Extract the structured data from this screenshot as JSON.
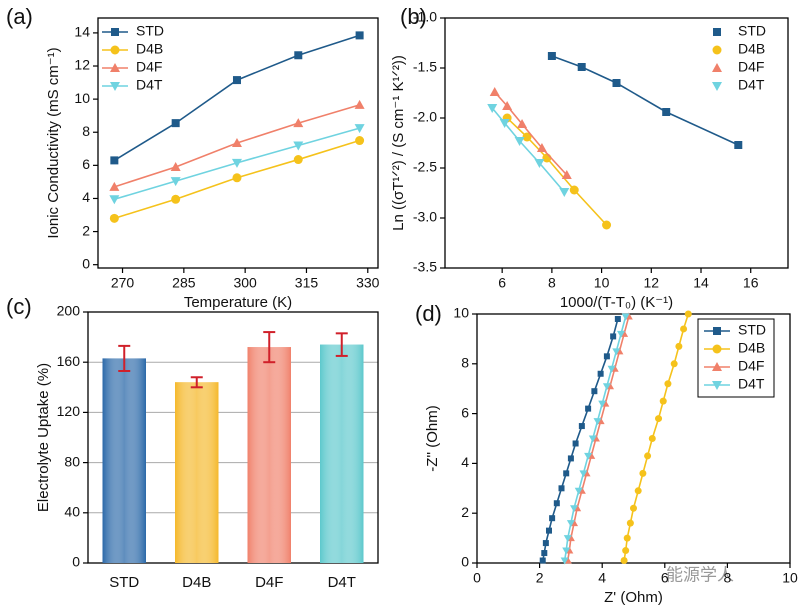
{
  "chart_data": [
    {
      "type": "line",
      "panel_label": "(a)",
      "x_label": "Temperature (K)",
      "y_label": "Ionic Conductivity (mS cm⁻¹)",
      "x": [
        268,
        283,
        298,
        313,
        328
      ],
      "xlim": [
        264,
        332.5
      ],
      "xticks": [
        270,
        285,
        300,
        315,
        330
      ],
      "ylim": [
        -0.2,
        14.9
      ],
      "yticks": [
        0,
        2,
        4,
        6,
        8,
        10,
        12,
        14
      ],
      "legend": "upper left",
      "series": [
        {
          "name": "STD",
          "color": "#1f5a8a",
          "marker": "square",
          "values": [
            6.3,
            8.55,
            11.15,
            12.65,
            13.85
          ]
        },
        {
          "name": "D4B",
          "color": "#f5c21b",
          "marker": "circle",
          "values": [
            2.8,
            3.95,
            5.25,
            6.35,
            7.5
          ]
        },
        {
          "name": "D4F",
          "color": "#f0806a",
          "marker": "triangle-up",
          "values": [
            4.7,
            5.9,
            7.35,
            8.55,
            9.65
          ]
        },
        {
          "name": "D4T",
          "color": "#6fd3e0",
          "marker": "triangle-down",
          "values": [
            3.95,
            5.05,
            6.15,
            7.2,
            8.25
          ]
        }
      ]
    },
    {
      "type": "line",
      "panel_label": "(b)",
      "x_label": "1000/(T-T₀) (K⁻¹)",
      "y_label": "Ln ((σT¹ᐟ²) / (S cm⁻¹ K¹ᐟ²))",
      "xlim": [
        3.7,
        17.5
      ],
      "xticks": [
        6,
        8,
        10,
        12,
        14,
        16
      ],
      "ylim": [
        -3.5,
        -1.0
      ],
      "yticks": [
        {
          "value": -1.0,
          "label": "-1.0"
        },
        -1.5,
        {
          "value": -2.0,
          "label": "-2.0"
        },
        -2.5,
        {
          "value": -3.0,
          "label": "-3.0"
        },
        -3.5
      ],
      "legend": "upper right",
      "series": [
        {
          "name": "STD",
          "color": "#1f5a8a",
          "marker": "square",
          "x": [
            8.0,
            9.2,
            10.6,
            12.6,
            15.5
          ],
          "values": [
            -1.38,
            -1.49,
            -1.65,
            -1.94,
            -2.27
          ]
        },
        {
          "name": "D4B",
          "color": "#f5c21b",
          "marker": "circle",
          "x": [
            6.2,
            7.0,
            7.8,
            8.9,
            10.2
          ],
          "values": [
            -2.0,
            -2.19,
            -2.4,
            -2.72,
            -3.07
          ]
        },
        {
          "name": "D4F",
          "color": "#f0806a",
          "marker": "triangle-up",
          "x": [
            5.7,
            6.2,
            6.8,
            7.6,
            8.6
          ],
          "values": [
            -1.74,
            -1.88,
            -2.06,
            -2.3,
            -2.57
          ]
        },
        {
          "name": "D4T",
          "color": "#6fd3e0",
          "marker": "triangle-down",
          "x": [
            5.6,
            6.1,
            6.7,
            7.5,
            8.5
          ],
          "values": [
            -1.9,
            -2.05,
            -2.23,
            -2.45,
            -2.74
          ]
        }
      ]
    },
    {
      "type": "bar",
      "panel_label": "(c)",
      "y_label": "Electrolyte Uptake (%)",
      "categories": [
        "STD",
        "D4B",
        "D4F",
        "D4T"
      ],
      "values": [
        163,
        144,
        172,
        174
      ],
      "errors": [
        10,
        4,
        12,
        9
      ],
      "colors": [
        "#2a68a8",
        "#f5b82a",
        "#f0806a",
        "#5cc8cc"
      ],
      "error_color": "#d0202a",
      "ylim": [
        0,
        200
      ],
      "yticks": [
        0,
        40,
        80,
        120,
        160,
        200
      ],
      "grid": true
    },
    {
      "type": "line",
      "panel_label": "(d)",
      "x_label": "Z' (Ohm)",
      "y_label": "-Z'' (Ohm)",
      "xlim": [
        0,
        10
      ],
      "xticks": [
        0,
        2,
        4,
        6,
        8,
        10
      ],
      "ylim": [
        0,
        10
      ],
      "yticks": [
        0,
        2,
        4,
        6,
        8,
        10
      ],
      "legend": "upper right",
      "series": [
        {
          "name": "STD",
          "color": "#1f5a8a",
          "marker": "square",
          "x": [
            2.1,
            2.15,
            2.2,
            2.3,
            2.4,
            2.55,
            2.7,
            2.85,
            3.0,
            3.15,
            3.35,
            3.55,
            3.75,
            3.95,
            4.15,
            4.35,
            4.5
          ],
          "values": [
            0.1,
            0.4,
            0.8,
            1.3,
            1.8,
            2.4,
            3.0,
            3.6,
            4.2,
            4.8,
            5.5,
            6.2,
            6.9,
            7.6,
            8.3,
            9.1,
            9.8
          ]
        },
        {
          "name": "D4B",
          "color": "#f5c21b",
          "marker": "circle",
          "x": [
            4.7,
            4.75,
            4.8,
            4.9,
            5.0,
            5.15,
            5.3,
            5.45,
            5.6,
            5.8,
            5.95,
            6.1,
            6.3,
            6.45,
            6.6,
            6.75
          ],
          "values": [
            0.1,
            0.5,
            1.0,
            1.6,
            2.2,
            2.9,
            3.6,
            4.3,
            5.0,
            5.8,
            6.5,
            7.2,
            8.0,
            8.7,
            9.4,
            10.0
          ]
        },
        {
          "name": "D4F",
          "color": "#f0806a",
          "marker": "triangle-up",
          "x": [
            2.9,
            2.95,
            3.0,
            3.1,
            3.2,
            3.35,
            3.5,
            3.65,
            3.8,
            3.95,
            4.1,
            4.25,
            4.4,
            4.55,
            4.7,
            4.85
          ],
          "values": [
            0.1,
            0.5,
            1.0,
            1.6,
            2.2,
            2.9,
            3.6,
            4.3,
            5.0,
            5.7,
            6.4,
            7.1,
            7.8,
            8.5,
            9.2,
            9.9
          ]
        },
        {
          "name": "D4T",
          "color": "#6fd3e0",
          "marker": "triangle-down",
          "x": [
            2.8,
            2.85,
            2.9,
            3.0,
            3.1,
            3.25,
            3.4,
            3.55,
            3.7,
            3.85,
            4.0,
            4.15,
            4.3,
            4.45,
            4.6,
            4.75
          ],
          "values": [
            0.1,
            0.5,
            1.0,
            1.6,
            2.2,
            2.9,
            3.6,
            4.3,
            5.0,
            5.7,
            6.4,
            7.1,
            7.8,
            8.5,
            9.2,
            9.9
          ]
        }
      ]
    }
  ],
  "watermark": "能源学人"
}
